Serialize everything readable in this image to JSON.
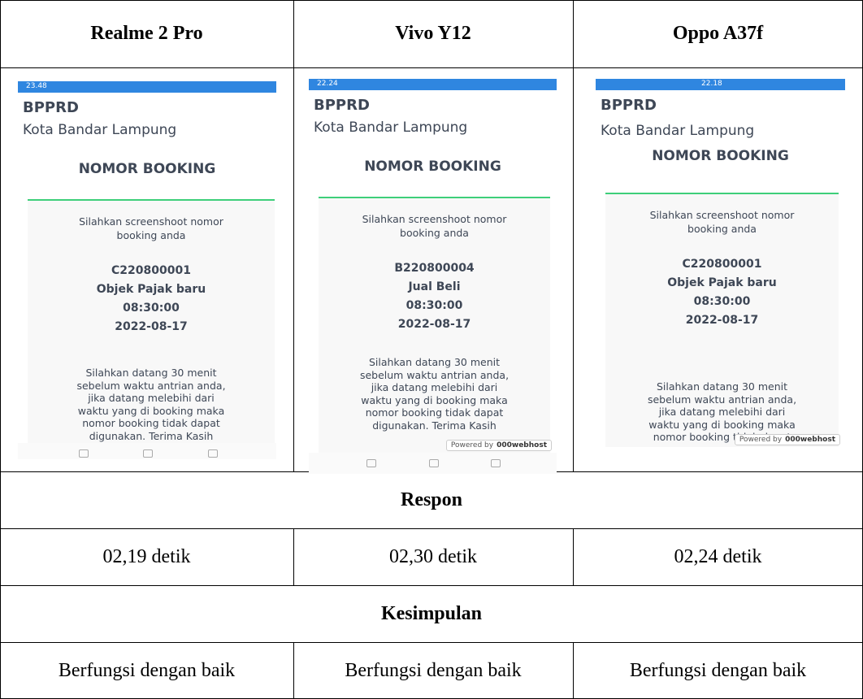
{
  "table": {
    "headers": [
      "Realme 2 Pro",
      "Vivo Y12",
      "Oppo A37f"
    ],
    "phones": [
      {
        "status_time": "23.48",
        "title": "BPPRD",
        "subtitle": "Kota Bandar Lampung",
        "heading": "NOMOR BOOKING",
        "instruction": [
          "Silahkan screenshoot nomor",
          "booking anda"
        ],
        "booking_code": "C220800001",
        "service": "Objek Pajak baru",
        "time": "08:30:00",
        "date": "2022-08-17",
        "message": [
          "Silahkan datang 30 menit",
          "sebelum waktu antrian anda,",
          "jika datang melebihi dari",
          "waktu yang di booking maka",
          "nomor booking tidak dapat",
          "digunakan. Terima Kasih"
        ]
      },
      {
        "status_time": "22.24",
        "title": "BPPRD",
        "subtitle": "Kota Bandar Lampung",
        "heading": "NOMOR BOOKING",
        "instruction": [
          "Silahkan screenshoot nomor",
          "booking anda"
        ],
        "booking_code": "B220800004",
        "service": "Jual Beli",
        "time": "08:30:00",
        "date": "2022-08-17",
        "message": [
          "Silahkan datang 30 menit",
          "sebelum waktu antrian anda,",
          "jika datang melebihi dari",
          "waktu yang di booking maka",
          "nomor booking tidak dapat",
          "digunakan. Terima Kasih"
        ],
        "badge": {
          "label": "Powered by",
          "brand": "000webhost"
        }
      },
      {
        "status_time": "22.18",
        "title": "BPPRD",
        "subtitle": "Kota Bandar Lampung",
        "heading": "NOMOR BOOKING",
        "instruction": [
          "Silahkan screenshoot nomor",
          "booking anda"
        ],
        "booking_code": "C220800001",
        "service": "Objek Pajak baru",
        "time": "08:30:00",
        "date": "2022-08-17",
        "message": [
          "Silahkan datang 30 menit",
          "sebelum waktu antrian anda,",
          "jika datang melebihi dari",
          "waktu yang di booking maka",
          "nomor booking tidak dapat"
        ],
        "badge": {
          "label": "Powered by",
          "brand": "000webhost"
        }
      }
    ],
    "rows": [
      {
        "label": "Respon",
        "cells": [
          "02,19 detik",
          "02,30 detik",
          "02,24 detik"
        ]
      },
      {
        "label": "Kesimpulan",
        "cells": [
          "Berfungsi dengan baik",
          "Berfungsi dengan baik",
          "Berfungsi dengan baik"
        ]
      }
    ]
  }
}
